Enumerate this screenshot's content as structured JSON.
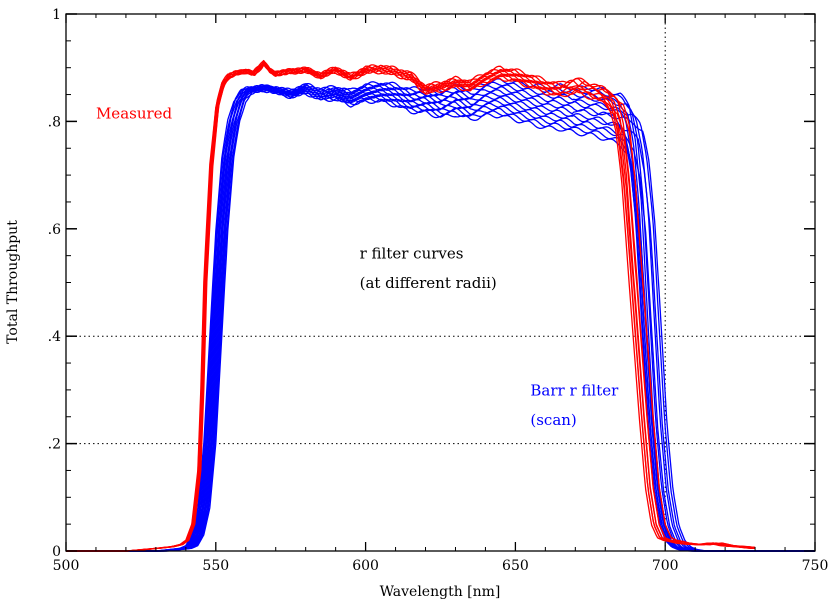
{
  "chart_data": {
    "type": "line",
    "title": "",
    "xlabel": "Wavelength [nm]",
    "ylabel": "Total Throughput",
    "xlim": [
      500,
      750
    ],
    "ylim": [
      0,
      1
    ],
    "x_ticks": [
      500,
      550,
      600,
      650,
      700,
      750
    ],
    "x_tick_labels": [
      "500",
      "550",
      "600",
      "650",
      "700",
      "750"
    ],
    "y_ticks": [
      0,
      0.2,
      0.4,
      0.6,
      0.8,
      1
    ],
    "y_tick_labels": [
      "0",
      ".2",
      ".4",
      ".6",
      ".8",
      "1"
    ],
    "reference_lines": {
      "horizontal": [
        0.2,
        0.4
      ],
      "vertical": [
        700
      ]
    },
    "annotations": [
      {
        "name": "measured-annotation",
        "text": "Measured",
        "color": "#ff0000",
        "x": 510,
        "y": 0.805
      },
      {
        "name": "r-filter-annotation-line1",
        "text": "r filter curves",
        "color": "#000000",
        "x": 598,
        "y": 0.545
      },
      {
        "name": "r-filter-annotation-line2",
        "text": "(at different radii)",
        "color": "#000000",
        "x": 598,
        "y": 0.49
      },
      {
        "name": "barr-annotation-line1",
        "text": "Barr r filter",
        "color": "#0000ff",
        "x": 655,
        "y": 0.29
      },
      {
        "name": "barr-annotation-line2",
        "text": "(scan)",
        "color": "#0000ff",
        "x": 655,
        "y": 0.235
      }
    ],
    "series": [
      {
        "name": "Barr r filter (scan)",
        "color": "#0000ff",
        "count": 14,
        "spread_plateau_drop": 0.1,
        "spread_rise_nm": 4,
        "spread_fall_nm": 5,
        "x": [
          500,
          520,
          530,
          538,
          540,
          542,
          544,
          546,
          548,
          550,
          552,
          554,
          556,
          558,
          560,
          565,
          570,
          575,
          580,
          585,
          590,
          595,
          600,
          605,
          610,
          615,
          620,
          625,
          630,
          635,
          640,
          645,
          650,
          655,
          660,
          665,
          670,
          675,
          680,
          685,
          688,
          690,
          692,
          694,
          696,
          698,
          700,
          702,
          704,
          706,
          708,
          710,
          720,
          750
        ],
        "values": [
          0,
          0,
          0,
          0.005,
          0.01,
          0.03,
          0.08,
          0.2,
          0.4,
          0.6,
          0.73,
          0.8,
          0.84,
          0.855,
          0.86,
          0.865,
          0.862,
          0.857,
          0.868,
          0.86,
          0.864,
          0.857,
          0.868,
          0.872,
          0.868,
          0.86,
          0.862,
          0.857,
          0.866,
          0.86,
          0.872,
          0.876,
          0.872,
          0.868,
          0.864,
          0.866,
          0.862,
          0.862,
          0.858,
          0.85,
          0.83,
          0.77,
          0.65,
          0.45,
          0.25,
          0.12,
          0.05,
          0.02,
          0.008,
          0.003,
          0.001,
          0,
          0,
          0
        ]
      },
      {
        "name": "Measured",
        "color": "#ff0000",
        "count": 9,
        "spread_plateau_drop": 0.03,
        "spread_rise_nm": 1,
        "spread_fall_nm": 4,
        "x": [
          500,
          520,
          530,
          535,
          538,
          540,
          542,
          544,
          545,
          546,
          548,
          550,
          552,
          554,
          556,
          558,
          560,
          562,
          564,
          566,
          568,
          570,
          575,
          580,
          585,
          590,
          595,
          600,
          605,
          610,
          615,
          620,
          625,
          630,
          635,
          640,
          645,
          650,
          655,
          660,
          665,
          670,
          675,
          680,
          683,
          685,
          687,
          689,
          691,
          693,
          695,
          697,
          699,
          701,
          703,
          705,
          708,
          712,
          716,
          720,
          725,
          730,
          750
        ],
        "values": [
          0,
          0,
          0.005,
          0.008,
          0.012,
          0.02,
          0.05,
          0.15,
          0.3,
          0.5,
          0.72,
          0.83,
          0.87,
          0.885,
          0.89,
          0.892,
          0.893,
          0.89,
          0.9,
          0.91,
          0.896,
          0.89,
          0.895,
          0.898,
          0.888,
          0.9,
          0.886,
          0.9,
          0.903,
          0.898,
          0.89,
          0.866,
          0.872,
          0.88,
          0.875,
          0.89,
          0.9,
          0.895,
          0.886,
          0.876,
          0.87,
          0.88,
          0.87,
          0.86,
          0.84,
          0.8,
          0.7,
          0.55,
          0.4,
          0.25,
          0.12,
          0.05,
          0.025,
          0.02,
          0.018,
          0.015,
          0.013,
          0.012,
          0.015,
          0.01,
          0.008,
          0.005,
          0.005
        ]
      }
    ]
  }
}
